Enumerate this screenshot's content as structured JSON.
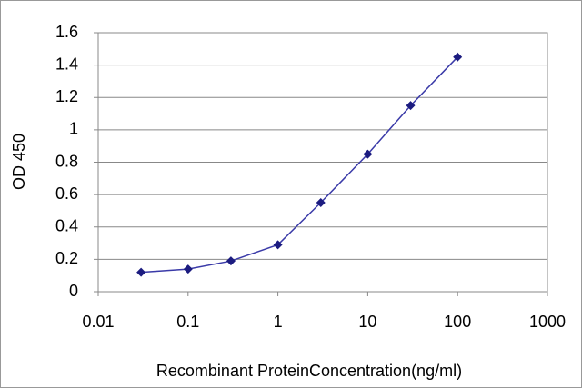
{
  "chart_data": {
    "type": "line",
    "x_label": "Recombinant ProteinConcentration(ng/ml)",
    "y_label": "OD 450",
    "x": [
      0.03,
      0.1,
      0.3,
      1,
      3,
      10,
      30,
      100
    ],
    "series": [
      {
        "color": "#3a3aa8",
        "values": [
          0.12,
          0.14,
          0.19,
          0.29,
          0.55,
          0.85,
          1.15,
          1.45
        ]
      }
    ],
    "xlim": [
      0.01,
      1000
    ],
    "xticks": [
      0.01,
      0.1,
      1,
      10,
      100,
      1000
    ],
    "x_log": true,
    "ylim": [
      0,
      1.6
    ],
    "yticks": [
      0,
      0.2,
      0.4,
      0.6,
      0.8,
      1,
      1.2,
      1.4,
      1.6
    ],
    "grid": true
  }
}
